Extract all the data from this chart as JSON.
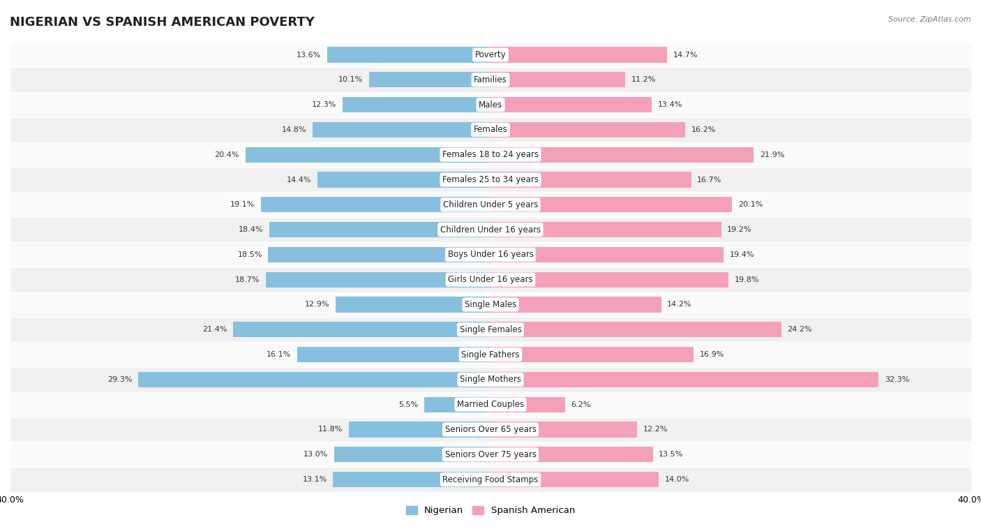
{
  "title": "NIGERIAN VS SPANISH AMERICAN POVERTY",
  "source": "Source: ZipAtlas.com",
  "categories": [
    "Poverty",
    "Families",
    "Males",
    "Females",
    "Females 18 to 24 years",
    "Females 25 to 34 years",
    "Children Under 5 years",
    "Children Under 16 years",
    "Boys Under 16 years",
    "Girls Under 16 years",
    "Single Males",
    "Single Females",
    "Single Fathers",
    "Single Mothers",
    "Married Couples",
    "Seniors Over 65 years",
    "Seniors Over 75 years",
    "Receiving Food Stamps"
  ],
  "nigerian": [
    13.6,
    10.1,
    12.3,
    14.8,
    20.4,
    14.4,
    19.1,
    18.4,
    18.5,
    18.7,
    12.9,
    21.4,
    16.1,
    29.3,
    5.5,
    11.8,
    13.0,
    13.1
  ],
  "spanish": [
    14.7,
    11.2,
    13.4,
    16.2,
    21.9,
    16.7,
    20.1,
    19.2,
    19.4,
    19.8,
    14.2,
    24.2,
    16.9,
    32.3,
    6.2,
    12.2,
    13.5,
    14.0
  ],
  "nigerian_color": "#87bfde",
  "spanish_color": "#f4a0b8",
  "nigerian_label": "Nigerian",
  "spanish_label": "Spanish American",
  "xlim": 40.0,
  "row_bg_odd": "#f0f0f0",
  "row_bg_even": "#fafafa",
  "title_fontsize": 13,
  "label_fontsize": 8.5,
  "value_fontsize": 8.0
}
